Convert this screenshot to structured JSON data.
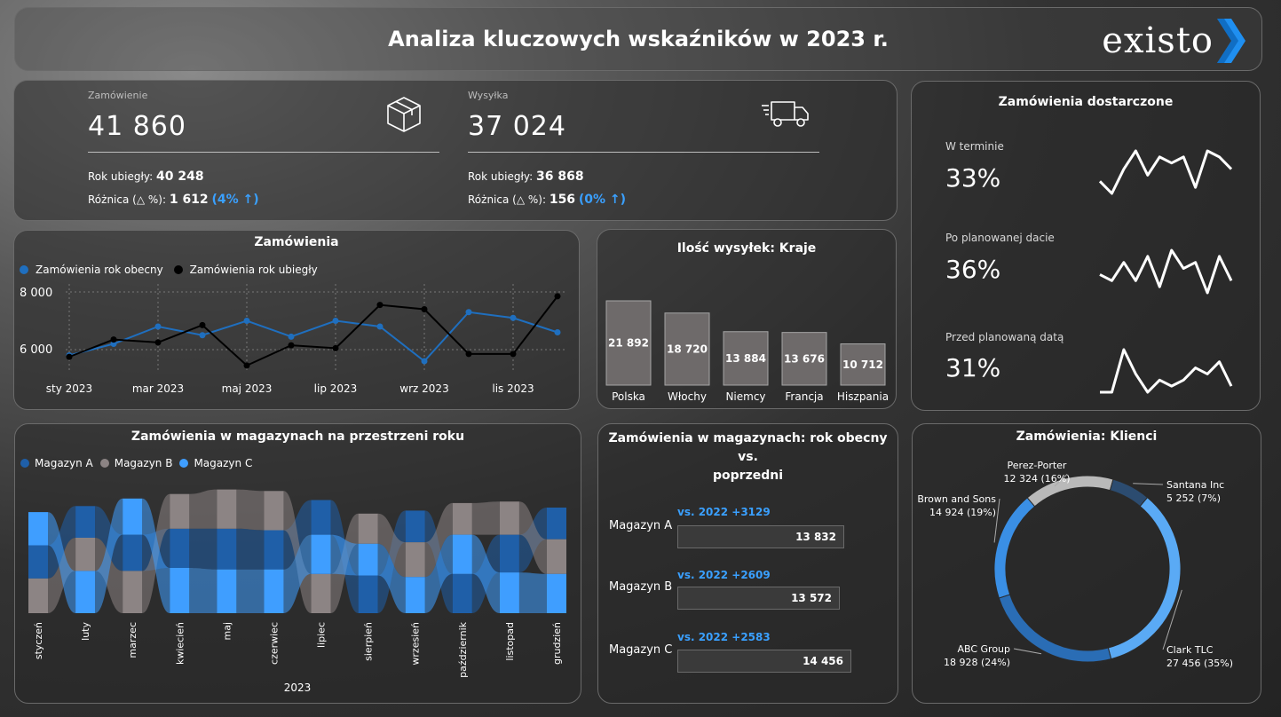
{
  "header": {
    "title": "Analiza kluczowych wskaźników w 2023 r.",
    "logo_text": "existo"
  },
  "kpi": {
    "orders": {
      "label": "Zamówienie",
      "value": "41 860",
      "prev_label": "Rok ubiegły:",
      "prev_value": "40 248",
      "diff_label": "Różnica (△ %):",
      "diff_value": "1 612",
      "diff_pct": "(4% ↑)",
      "icon": "box-icon"
    },
    "shipping": {
      "label": "Wysyłka",
      "value": "37 024",
      "prev_label": "Rok ubiegły:",
      "prev_value": "36 868",
      "diff_label": "Różnica (△ %):",
      "diff_value": "156",
      "diff_pct": "(0% ↑)",
      "icon": "truck-icon"
    }
  },
  "orders_chart": {
    "title": "Zamówienia",
    "legend": [
      "Zamówienia rok obecny",
      "Zamówienia rok ubiegły"
    ],
    "colors": {
      "current": "#1f6fbf",
      "previous": "#000000"
    },
    "x_ticks": [
      "sty 2023",
      "mar 2023",
      "maj 2023",
      "lip 2023",
      "wrz 2023",
      "lis 2023"
    ],
    "y_ticks": [
      "8 000",
      "6 000"
    ]
  },
  "countries": {
    "title": "Ilość wysyłek: Kraje"
  },
  "delivered": {
    "title": "Zamówienia dostarczone",
    "items": [
      {
        "label": "W terminie",
        "value": "33%"
      },
      {
        "label": "Po planowanej dacie",
        "value": "36%"
      },
      {
        "label": "Przed planowaną datą",
        "value": "31%"
      }
    ],
    "spark": [
      [
        4,
        2,
        6,
        9,
        5,
        8,
        7,
        8,
        3,
        9,
        8,
        6
      ],
      [
        5,
        4,
        7,
        4,
        8,
        3,
        9,
        6,
        7,
        2,
        8,
        4
      ],
      [
        2,
        2,
        9,
        5,
        2,
        4,
        3,
        4,
        6,
        5,
        7,
        3
      ]
    ]
  },
  "warehouses_year": {
    "title": "Zamówienia w magazynach na przestrzeni roku",
    "legend": [
      "Magazyn A",
      "Magazyn B",
      "Magazyn C"
    ],
    "colors": {
      "a": "#1f5fa8",
      "b": "#8c8484",
      "c": "#3f9eff"
    },
    "months": [
      "styczeń",
      "luty",
      "marzec",
      "kwiecień",
      "maj",
      "czerwiec",
      "lipiec",
      "sierpień",
      "wrzesień",
      "październik",
      "listopad",
      "grudzień"
    ],
    "xlabel": "2023"
  },
  "warehouses_cmp": {
    "title_line1": "Zamówienia w magazynach: rok obecny vs.",
    "title_line2": "poprzedni",
    "rows": [
      {
        "label": "Magazyn A",
        "delta": "vs. 2022 +3129",
        "value": "13 832"
      },
      {
        "label": "Magazyn B",
        "delta": "vs. 2022 +2609",
        "value": "13 572"
      },
      {
        "label": "Magazyn C",
        "delta": "vs. 2022 +2583",
        "value": "14 456"
      }
    ]
  },
  "clients": {
    "title": "Zamówienia: Klienci"
  },
  "chart_data": [
    {
      "type": "line",
      "title": "Zamówienia",
      "x": [
        "sty 2023",
        "lut 2023",
        "mar 2023",
        "kwi 2023",
        "maj 2023",
        "cze 2023",
        "lip 2023",
        "sie 2023",
        "wrz 2023",
        "paź 2023",
        "lis 2023",
        "gru 2023"
      ],
      "series": [
        {
          "name": "Zamówienia rok obecny",
          "values": [
            5800,
            6200,
            6800,
            6500,
            7000,
            6450,
            7000,
            6800,
            5600,
            7300,
            7100,
            6600
          ]
        },
        {
          "name": "Zamówienia rok ubiegły",
          "values": [
            5750,
            6350,
            6250,
            6850,
            5450,
            6150,
            6050,
            7550,
            7400,
            5850,
            5850,
            7850
          ]
        }
      ],
      "y_ticks": [
        6000,
        8000
      ]
    },
    {
      "type": "bar",
      "title": "Ilość wysyłek: Kraje",
      "categories": [
        "Polska",
        "Włochy",
        "Niemcy",
        "Francja",
        "Hiszpania"
      ],
      "values": [
        21892,
        18720,
        13884,
        13676,
        10712
      ],
      "value_labels": [
        "21 892",
        "18 720",
        "13 884",
        "13 676",
        "10 712"
      ]
    },
    {
      "type": "area",
      "title": "Zamówienia w magazynach na przestrzeni roku",
      "categories": [
        "styczeń",
        "luty",
        "marzec",
        "kwiecień",
        "maj",
        "czerwiec",
        "lipiec",
        "sierpień",
        "wrzesień",
        "październik",
        "listopad",
        "grudzień"
      ],
      "series": [
        {
          "name": "Magazyn A",
          "values": [
            1100,
            1050,
            1200,
            1300,
            1350,
            1300,
            1150,
            1250,
            1050,
            1300,
            1250,
            1050
          ]
        },
        {
          "name": "Magazyn B",
          "values": [
            1150,
            1100,
            1400,
            1150,
            1300,
            1300,
            1300,
            1000,
            1150,
            1050,
            1100,
            1150
          ]
        },
        {
          "name": "Magazyn C",
          "values": [
            1100,
            1400,
            1200,
            1500,
            1450,
            1450,
            1300,
            1050,
            1200,
            1300,
            1350,
            1300
          ]
        }
      ]
    },
    {
      "type": "pie",
      "title": "Zamówienia: Klienci",
      "categories": [
        "Clark TLC",
        "ABC Group",
        "Brown and Sons",
        "Perez-Porter",
        "Santana Inc"
      ],
      "values": [
        27456,
        18928,
        14924,
        12324,
        5252
      ],
      "labels": [
        "Clark TLC\n27 456 (35%)",
        "ABC Group\n18 928 (24%)",
        "Brown and Sons\n14 924 (19%)",
        "Perez-Porter\n12 324 (16%)",
        "Santana Inc\n5 252 (7%)"
      ],
      "colors": [
        "#5aaaf5",
        "#2a6db5",
        "#3a8fe5",
        "#b9b9b9",
        "#2c4c70"
      ]
    }
  ]
}
